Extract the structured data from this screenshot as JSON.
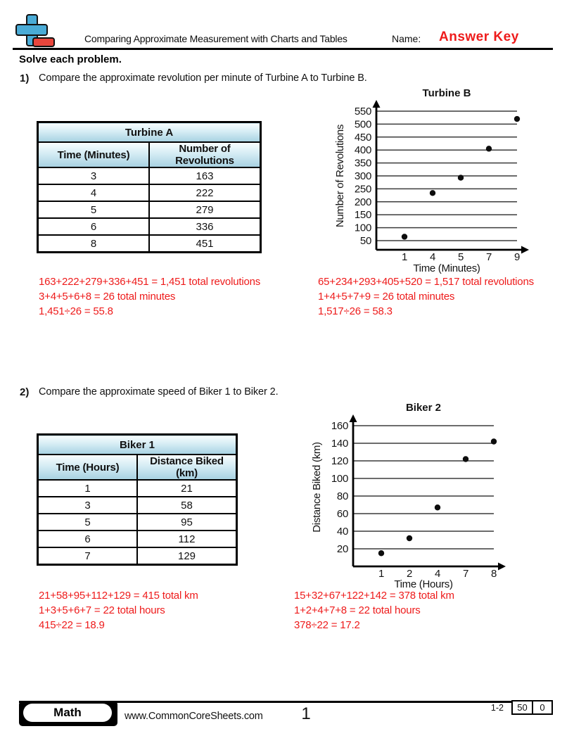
{
  "header": {
    "worksheet_title": "Comparing Approximate Measurement with Charts and Tables",
    "name_label": "Name:",
    "answer_key_label": "Answer Key"
  },
  "instructions": "Solve each problem.",
  "colors": {
    "answer_red": "#ee1b1b",
    "logo_blue": "#4aabd6",
    "logo_red": "#e8463c",
    "table_header_blue": "#a8d2e2"
  },
  "problems": [
    {
      "number": "1)",
      "question": "Compare the approximate revolution per minute of Turbine A to Turbine B.",
      "table": {
        "title": "Turbine A",
        "columns": [
          "Time (Minutes)",
          "Number of Revolutions"
        ],
        "rows": [
          [
            "3",
            "163"
          ],
          [
            "4",
            "222"
          ],
          [
            "5",
            "279"
          ],
          [
            "6",
            "336"
          ],
          [
            "8",
            "451"
          ]
        ]
      },
      "answers_left": [
        "163+222+279+336+451 = 1,451 total revolutions",
        "3+4+5+6+8 = 26 total minutes",
        "1,451÷26 = 55.8"
      ],
      "answers_right": [
        "65+234+293+405+520 = 1,517 total revolutions",
        "1+4+5+7+9 = 26 total minutes",
        "1,517÷26 = 58.3"
      ]
    },
    {
      "number": "2)",
      "question": "Compare the approximate speed of Biker 1 to Biker 2.",
      "table": {
        "title": "Biker 1",
        "columns": [
          "Time (Hours)",
          "Distance Biked (km)"
        ],
        "rows": [
          [
            "1",
            "21"
          ],
          [
            "3",
            "58"
          ],
          [
            "5",
            "95"
          ],
          [
            "6",
            "112"
          ],
          [
            "7",
            "129"
          ]
        ]
      },
      "answers_left": [
        "21+58+95+112+129 = 415 total km",
        "1+3+5+6+7 = 22 total hours",
        "415÷22 = 18.9"
      ],
      "answers_right": [
        "15+32+67+122+142 = 378 total km",
        "1+2+4+7+8 = 22 total hours",
        "378÷22 = 17.2"
      ]
    }
  ],
  "chart_data": [
    {
      "type": "scatter",
      "title": "Turbine B",
      "xlabel": "Time (Minutes)",
      "ylabel": "Number of Revolutions",
      "x_ticks": [
        1,
        4,
        5,
        7,
        9
      ],
      "y_ticks": [
        50,
        100,
        150,
        200,
        250,
        300,
        350,
        400,
        450,
        500,
        550
      ],
      "ylim": [
        50,
        550
      ],
      "grid": "horizontal",
      "x_spacing": "ordinal-equal",
      "points": [
        [
          1,
          65
        ],
        [
          4,
          234
        ],
        [
          5,
          293
        ],
        [
          7,
          405
        ],
        [
          9,
          520
        ]
      ]
    },
    {
      "type": "scatter",
      "title": "Biker 2",
      "xlabel": "Time (Hours)",
      "ylabel": "Distance Biked (km)",
      "x_ticks": [
        1,
        2,
        4,
        7,
        8
      ],
      "y_ticks": [
        20,
        40,
        60,
        80,
        100,
        120,
        140,
        160
      ],
      "ylim": [
        20,
        160
      ],
      "grid": "horizontal",
      "x_spacing": "ordinal-equal",
      "points": [
        [
          1,
          15
        ],
        [
          2,
          32
        ],
        [
          4,
          67
        ],
        [
          7,
          122
        ],
        [
          8,
          142
        ]
      ]
    }
  ],
  "footer": {
    "subject": "Math",
    "website": "www.CommonCoreSheets.com",
    "page_number": "1",
    "problem_range": "1-2",
    "score_points_per_problem": "50",
    "score_start": "0"
  }
}
